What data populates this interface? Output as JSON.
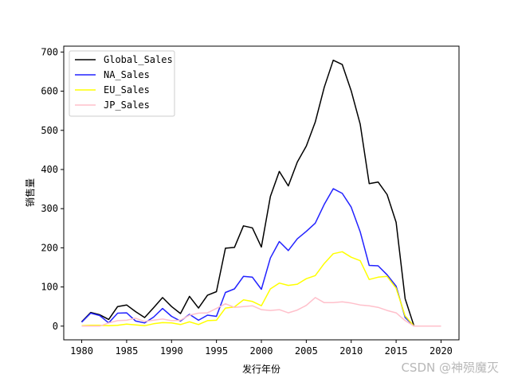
{
  "chart_data": {
    "type": "line",
    "xlabel": "发行年份",
    "ylabel": "销售量",
    "xlim": [
      1978,
      2022
    ],
    "ylim": [
      -35,
      715
    ],
    "xticks": [
      1980,
      1985,
      1990,
      1995,
      2000,
      2005,
      2010,
      2015,
      2020
    ],
    "yticks": [
      0,
      100,
      200,
      300,
      400,
      500,
      600,
      700
    ],
    "grid": false,
    "legend_position": "upper-left",
    "x": [
      1980,
      1981,
      1982,
      1983,
      1984,
      1985,
      1986,
      1987,
      1988,
      1989,
      1990,
      1991,
      1992,
      1993,
      1994,
      1995,
      1996,
      1997,
      1998,
      1999,
      2000,
      2001,
      2002,
      2003,
      2004,
      2005,
      2006,
      2007,
      2008,
      2009,
      2010,
      2011,
      2012,
      2013,
      2014,
      2015,
      2016,
      2017,
      2018,
      2019,
      2020
    ],
    "series": [
      {
        "name": "Global_Sales",
        "color": "#000000",
        "values": [
          11,
          35,
          29,
          17,
          50,
          54,
          37,
          22,
          47,
          73,
          50,
          32,
          76,
          46,
          79,
          88,
          199,
          201,
          256,
          251,
          202,
          331,
          395,
          358,
          419,
          460,
          521,
          610,
          679,
          668,
          601,
          516,
          364,
          368,
          336,
          265,
          70,
          0,
          0,
          0,
          0
        ]
      },
      {
        "name": "NA_Sales",
        "color": "#2222ff",
        "values": [
          10,
          33,
          27,
          8,
          33,
          34,
          13,
          8,
          23,
          45,
          25,
          13,
          30,
          15,
          28,
          25,
          86,
          95,
          127,
          125,
          94,
          174,
          216,
          193,
          223,
          242,
          263,
          311,
          351,
          339,
          304,
          241,
          155,
          154,
          131,
          102,
          22,
          0,
          0,
          0,
          0
        ]
      },
      {
        "name": "EU_Sales",
        "color": "#ffff00",
        "values": [
          1,
          2,
          2,
          1,
          2,
          5,
          3,
          1,
          6,
          9,
          8,
          4,
          11,
          4,
          14,
          15,
          46,
          49,
          67,
          63,
          52,
          95,
          110,
          104,
          107,
          121,
          129,
          160,
          185,
          190,
          176,
          167,
          119,
          125,
          127,
          97,
          26,
          0,
          0,
          0,
          0
        ]
      },
      {
        "name": "JP_Sales",
        "color": "#ffc0cb",
        "values": [
          0,
          0,
          0,
          8,
          14,
          15,
          20,
          12,
          15,
          18,
          14,
          15,
          28,
          33,
          34,
          45,
          57,
          48,
          50,
          52,
          42,
          40,
          42,
          34,
          41,
          53,
          73,
          60,
          60,
          62,
          59,
          54,
          52,
          48,
          40,
          34,
          14,
          0,
          0,
          0,
          0
        ]
      }
    ]
  },
  "watermark": "CSDN @神殒魔灭"
}
